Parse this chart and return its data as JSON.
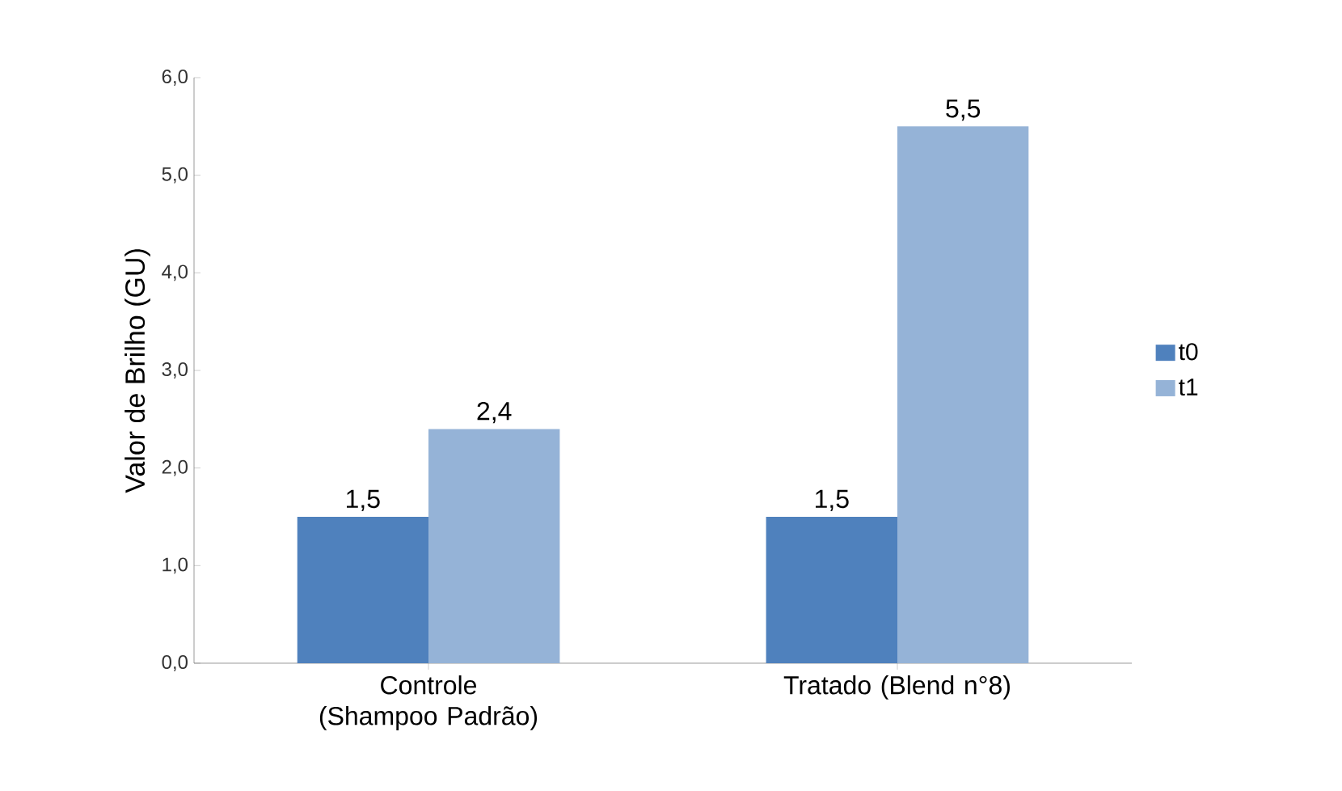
{
  "chart_data": {
    "type": "bar",
    "ylabel": "Valor de Brilho (GU)",
    "categories": [
      "Controle (Shampoo Padrão)",
      "Tratado (Blend n°8)"
    ],
    "series": [
      {
        "name": "t0",
        "color": "#4f81bd",
        "values": [
          1.5,
          1.5
        ],
        "value_labels": [
          "1,5",
          "1,5"
        ]
      },
      {
        "name": "t1",
        "color": "#95b3d7",
        "values": [
          2.4,
          5.5
        ],
        "value_labels": [
          "2,4",
          "5,5"
        ]
      }
    ],
    "ylim": [
      0,
      6
    ],
    "yticks": [
      {
        "value": 0,
        "label": "0,0"
      },
      {
        "value": 1,
        "label": "1,0"
      },
      {
        "value": 2,
        "label": "2,0"
      },
      {
        "value": 3,
        "label": "3,0"
      },
      {
        "value": 4,
        "label": "4,0"
      },
      {
        "value": 5,
        "label": "5,0"
      },
      {
        "value": 6,
        "label": "6,0"
      }
    ],
    "legend": "right"
  }
}
